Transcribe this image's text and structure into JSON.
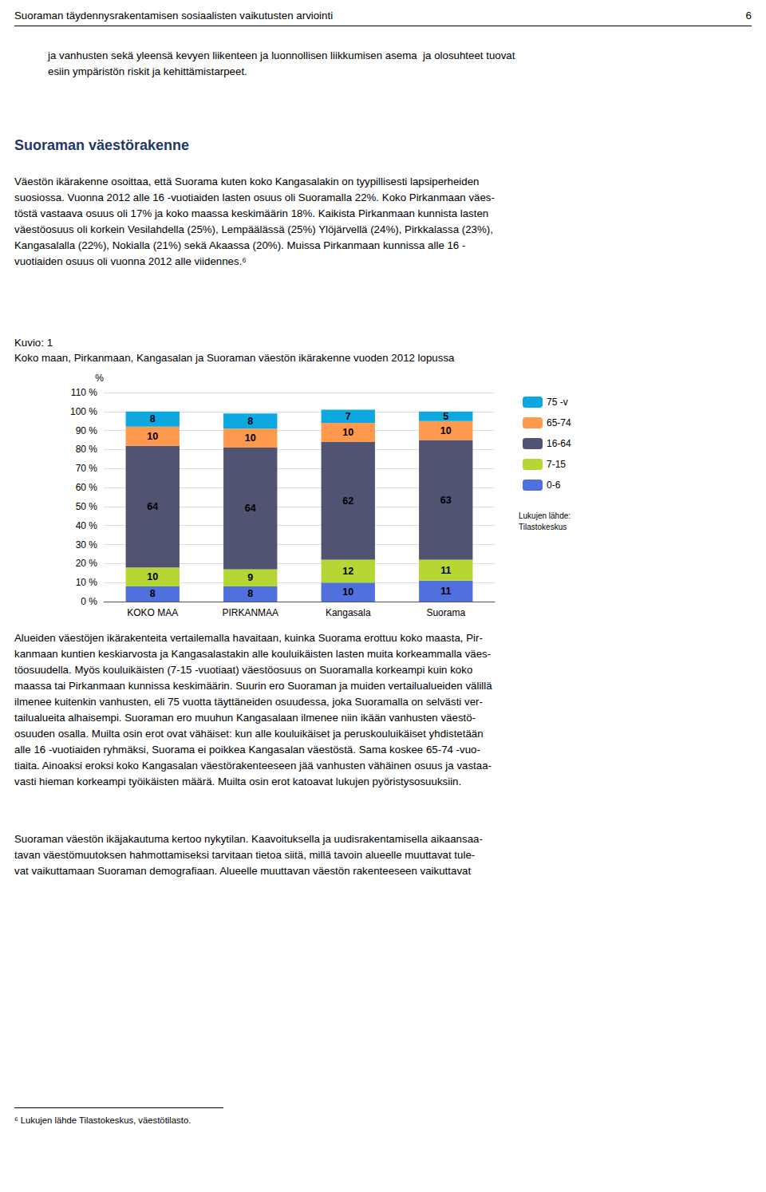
{
  "chart_data": {
    "type": "bar",
    "title": "Koko maan, Pirkanmaan, Kangasalan ja Suoraman väestön ikärakenne vuoden 2012 lopussa",
    "subtitle": "Kuvio: 1",
    "categories": [
      "KOKO MAA",
      "PIRKANMAA",
      "Kangasala",
      "Suorama"
    ],
    "series": [
      {
        "name": "0-6",
        "values": [
          8,
          8,
          10,
          11
        ]
      },
      {
        "name": "7-15",
        "values": [
          10,
          9,
          12,
          11
        ]
      },
      {
        "name": "16-64",
        "values": [
          64,
          64,
          62,
          63
        ]
      },
      {
        "name": "65-74",
        "values": [
          10,
          10,
          10,
          10
        ]
      },
      {
        "name": "75 -v",
        "values": [
          8,
          8,
          7,
          5
        ]
      }
    ],
    "stacked": true,
    "data_labels": true,
    "ylabel": "%",
    "ylim": [
      0,
      110
    ],
    "yticks": [
      {
        "value": 0,
        "label": "0 %"
      },
      {
        "value": 10,
        "label": "10 %"
      },
      {
        "value": 20,
        "label": "20 %"
      },
      {
        "value": 30,
        "label": "30 %"
      },
      {
        "value": 40,
        "label": "40 %"
      },
      {
        "value": 50,
        "label": "50 %"
      },
      {
        "value": 60,
        "label": "60 %"
      },
      {
        "value": 70,
        "label": "70 %"
      },
      {
        "value": 80,
        "label": "80 %"
      },
      {
        "value": 90,
        "label": "90 %"
      },
      {
        "value": 100,
        "label": "100 %"
      },
      {
        "value": 110,
        "label": "110 %"
      }
    ],
    "grid": true,
    "legend": "right",
    "annotations": [
      "Suoraman täydennysrakentamisen sosiaalisten vaikutusten arviointi",
      "6",
      "ja vanhusten sekä yleensä kevyen liikenteen ja luonnollisen liikkumisen asema  ja olosuhteet tuovat\nesiin ympäristön riskit ja kehittämistarpeet.",
      "Suoraman väestörakenne",
      "Väestön ikärakenne osoittaa, että Suorama kuten koko Kangasalakin on tyypillisesti lapsiperheiden\nsuosiossa. Vuonna 2012 alle 16 -vuotiaiden lasten osuus oli Suoramalla 22%. Koko Pirkanmaan väes-\ntöstä vastaava osuus oli 17% ja koko maassa keskimäärin 18%. Kaikista Pirkanmaan kunnista lasten\nväestöosuus oli korkein Vesilahdella (25%), Lempäälässä (25%) Ylöjärvellä (24%), Pirkkalassa (23%),\nKangasalalla (22%), Nokialla (21%) sekä Akaassa (20%). Muissa Pirkanmaan kunnissa alle 16 -\nvuotiaiden osuus oli vuonna 2012 alle viidennes.⁶",
      "Lukujen lähde:\nTilastokeskus",
      "Alueiden väestöjen ikärakenteita vertailemalla havaitaan, kuinka Suorama erottuu koko maasta, Pir-\nkanmaan kuntien keskiarvosta ja Kangasalastakin alle kouluikäisten lasten muita korkeammalla väes-\ntöosuudella. Myös kouluikäisten (7-15 -vuotiaat) väestöosuus on Suoramalla korkeampi kuin koko\nmaassa tai Pirkanmaan kunnissa keskimäärin. Suurin ero Suoraman ja muiden vertailualueiden välillä\nilmenee kuitenkin vanhusten, eli 75 vuotta täyttäneiden osuudessa, joka Suoramalla on selvästi ver-\ntailualueita alhaisempi. Suoraman ero muuhun Kangasalaan ilmenee niin ikään vanhusten väestö-\nosuuden osalla. Muilta osin erot ovat vähäiset: kun alle kouluikäiset ja peruskouluikäiset yhdistetään\nalle 16 -vuotiaiden ryhmäksi, Suorama ei poikkea Kangasalan väestöstä. Sama koskee 65-74 -vuo-\ntiaita. Ainoaksi eroksi koko Kangasalan väestörakenteeseen jää vanhusten vähäinen osuus ja vastaa-\nvasti hieman korkeampi työikäisten määrä. Muilta osin erot katoavat lukujen pyöristysosuuksiin.",
      "Suoraman väestön ikäjakautuma kertoo nykytilan. Kaavoituksella ja uudisrakentamisella aikaansaa-\ntavan väestömuutoksen hahmottamiseksi tarvitaan tietoa siitä, millä tavoin alueelle muuttavat tule-\nvat vaikuttamaan Suoraman demografiaan. Alueelle muuttavan väestön rakenteeseen vaikuttavat",
      "⁶ Lukujen lähde Tilastokeskus, väestötilasto."
    ]
  }
}
